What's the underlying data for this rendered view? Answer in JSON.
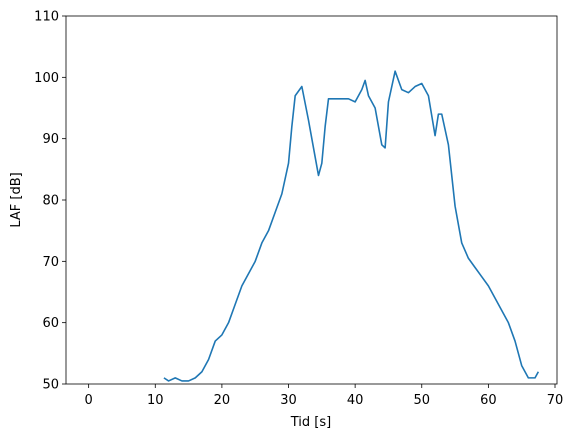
{
  "chart_data": {
    "type": "line",
    "x_label": "Tid [s]",
    "y_label": "LAF [dB]",
    "x": [
      11.3,
      12,
      13,
      14,
      15,
      16,
      17,
      18,
      19,
      20,
      21,
      22,
      23,
      24,
      25,
      26,
      27,
      28,
      29,
      30,
      30.5,
      31,
      32,
      33,
      34,
      34.5,
      35,
      35.5,
      36,
      37,
      38,
      39,
      40,
      41,
      41.5,
      42,
      43,
      44,
      44.5,
      45,
      46,
      47,
      48,
      49,
      50,
      51,
      52,
      52.5,
      53,
      54,
      55,
      56,
      57,
      58,
      59,
      60,
      61,
      62,
      63,
      64,
      65,
      66,
      67,
      67.5
    ],
    "series": [
      {
        "color": "#1f77b4",
        "values": [
          51,
          50.5,
          51,
          50.5,
          50.5,
          51,
          52,
          54,
          57,
          58,
          60,
          63,
          66,
          68,
          70,
          73,
          75,
          78,
          81,
          86,
          92,
          97,
          98.5,
          93,
          87,
          84,
          86,
          92,
          96.5,
          96.5,
          96.5,
          96.5,
          96,
          98,
          99.5,
          97,
          95,
          89,
          88.5,
          96,
          101,
          98,
          97.5,
          98.5,
          99,
          97,
          90.5,
          94,
          94,
          89,
          79,
          73,
          70.5,
          69,
          67.5,
          66,
          64,
          62,
          60,
          57,
          53,
          51,
          51,
          52
        ]
      }
    ],
    "xlim": [
      -3.4,
      70.3
    ],
    "ylim": [
      50,
      110
    ],
    "xticks": [
      0,
      10,
      20,
      30,
      40,
      50,
      60,
      70
    ],
    "yticks": [
      50,
      60,
      70,
      80,
      90,
      100,
      110
    ]
  }
}
